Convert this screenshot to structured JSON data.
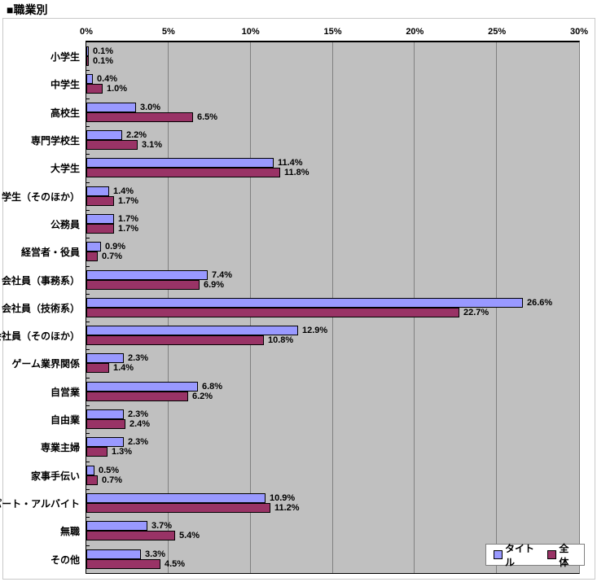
{
  "title": "■職業別",
  "legend": {
    "items": [
      {
        "label": "タイトル",
        "color": "#9999FF"
      },
      {
        "label": "全体",
        "color": "#993366"
      }
    ]
  },
  "colors": {
    "plot_bg": "#C0C0C0",
    "gridline": "#808080",
    "axis": "#000000",
    "frame_border": "#C9C9C9",
    "legend_border": "#808080"
  },
  "chart_data": {
    "type": "bar",
    "orientation": "horizontal",
    "title": "職業別",
    "categories": [
      "小学生",
      "中学生",
      "高校生",
      "専門学校生",
      "大学生",
      "学生（そのほか）",
      "公務員",
      "経営者・役員",
      "会社員（事務系）",
      "会社員（技術系）",
      "会社員（そのほか）",
      "ゲーム業界関係",
      "自営業",
      "自由業",
      "専業主婦",
      "家事手伝い",
      "パート・アルバイト",
      "無職",
      "その他"
    ],
    "series": [
      {
        "name": "タイトル",
        "color": "#9999FF",
        "values": [
          0.1,
          0.4,
          3.0,
          2.2,
          11.4,
          1.4,
          1.7,
          0.9,
          7.4,
          26.6,
          12.9,
          2.3,
          6.8,
          2.3,
          2.3,
          0.5,
          10.9,
          3.7,
          3.3
        ]
      },
      {
        "name": "全体",
        "color": "#993366",
        "values": [
          0.1,
          1.0,
          6.5,
          3.1,
          11.8,
          1.7,
          1.7,
          0.7,
          6.9,
          22.7,
          10.8,
          1.4,
          6.2,
          2.4,
          1.3,
          0.7,
          11.2,
          5.4,
          4.5
        ]
      }
    ],
    "x_axis": {
      "tick_labels": [
        "0%",
        "5%",
        "10%",
        "15%",
        "20%",
        "25%",
        "30%"
      ],
      "min": 0,
      "max": 30,
      "unit": "%",
      "position": "top"
    },
    "value_labels": true,
    "value_label_format": "{value}%",
    "grid": true,
    "legend_position": "bottom-right",
    "plot_background": "#C0C0C0"
  }
}
